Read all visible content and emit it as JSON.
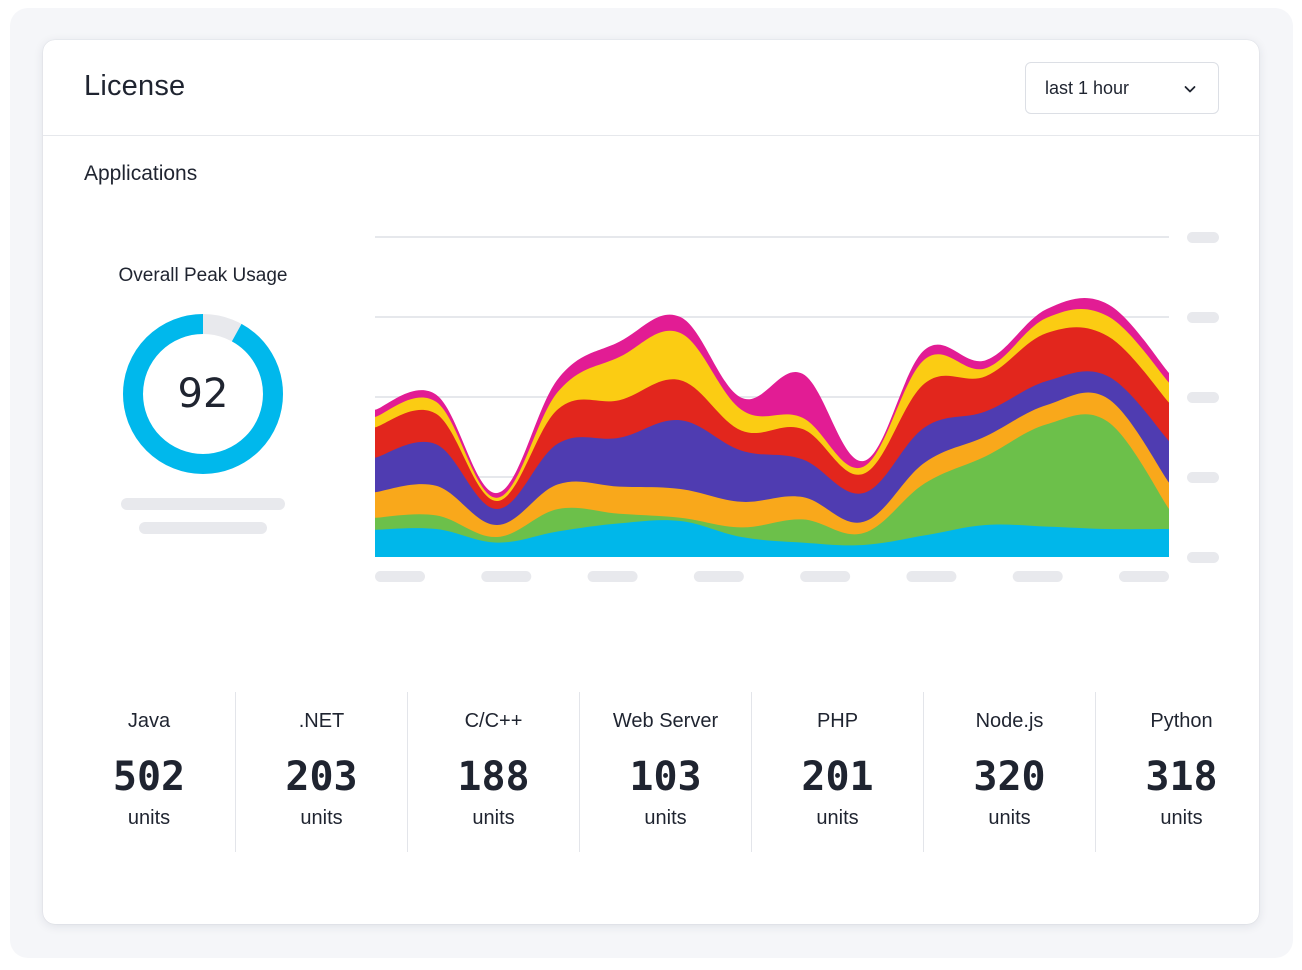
{
  "card": {
    "title": "License",
    "time_range": {
      "selected": "last 1 hour",
      "icon": "chevron-down-icon"
    }
  },
  "applications": {
    "section_title": "Applications",
    "overall_peak": {
      "title": "Overall Peak Usage",
      "value": "92",
      "percent": 92
    }
  },
  "colors": {
    "donut": "#00b8ec",
    "donut_track": "#e8e9ed",
    "gridline": "#e6e8ec",
    "skeleton": "#e8e9ed"
  },
  "chart_data": {
    "type": "area",
    "stacked": true,
    "title": "",
    "xlabel": "",
    "ylabel": "",
    "ylim": [
      0,
      4
    ],
    "grid": true,
    "y_ticks_count": 5,
    "x_ticks_count": 8,
    "x": [
      0,
      1,
      2,
      3,
      4,
      5,
      6,
      7,
      8,
      9,
      10,
      11,
      12,
      13
    ],
    "series": [
      {
        "name": "Blue",
        "color": "#00b7ea",
        "values": [
          0.34,
          0.35,
          0.18,
          0.32,
          0.42,
          0.45,
          0.25,
          0.18,
          0.15,
          0.27,
          0.4,
          0.38,
          0.35,
          0.35
        ]
      },
      {
        "name": "Green",
        "color": "#6cc04a",
        "values": [
          0.15,
          0.17,
          0.07,
          0.28,
          0.12,
          0.04,
          0.12,
          0.29,
          0.15,
          0.65,
          0.86,
          1.28,
          1.34,
          0.25
        ]
      },
      {
        "name": "Orange",
        "color": "#f9a81b",
        "values": [
          0.32,
          0.37,
          0.15,
          0.31,
          0.34,
          0.36,
          0.32,
          0.28,
          0.14,
          0.26,
          0.25,
          0.24,
          0.29,
          0.33
        ]
      },
      {
        "name": "Purple",
        "color": "#4f3cb1",
        "values": [
          0.43,
          0.52,
          0.2,
          0.51,
          0.61,
          0.86,
          0.64,
          0.47,
          0.36,
          0.44,
          0.31,
          0.3,
          0.28,
          0.52
        ]
      },
      {
        "name": "Red",
        "color": "#e2261d",
        "values": [
          0.38,
          0.38,
          0.1,
          0.43,
          0.47,
          0.5,
          0.25,
          0.38,
          0.24,
          0.55,
          0.44,
          0.6,
          0.5,
          0.48
        ]
      },
      {
        "name": "Yellow",
        "color": "#fbcc13",
        "values": [
          0.13,
          0.15,
          0.04,
          0.22,
          0.54,
          0.59,
          0.26,
          0.14,
          0.09,
          0.3,
          0.1,
          0.19,
          0.25,
          0.25
        ]
      },
      {
        "name": "Magenta",
        "color": "#e21c94",
        "values": [
          0.09,
          0.09,
          0.06,
          0.16,
          0.19,
          0.2,
          0.15,
          0.55,
          0.07,
          0.12,
          0.1,
          0.11,
          0.15,
          0.12
        ]
      }
    ]
  },
  "stats": [
    {
      "name": "Java",
      "value": "502",
      "unit": "units"
    },
    {
      "name": ".NET",
      "value": "203",
      "unit": "units"
    },
    {
      "name": "C/C++",
      "value": "188",
      "unit": "units"
    },
    {
      "name": "Web Server",
      "value": "103",
      "unit": "units"
    },
    {
      "name": "PHP",
      "value": "201",
      "unit": "units"
    },
    {
      "name": "Node.js",
      "value": "320",
      "unit": "units"
    },
    {
      "name": "Python",
      "value": "318",
      "unit": "units"
    }
  ]
}
